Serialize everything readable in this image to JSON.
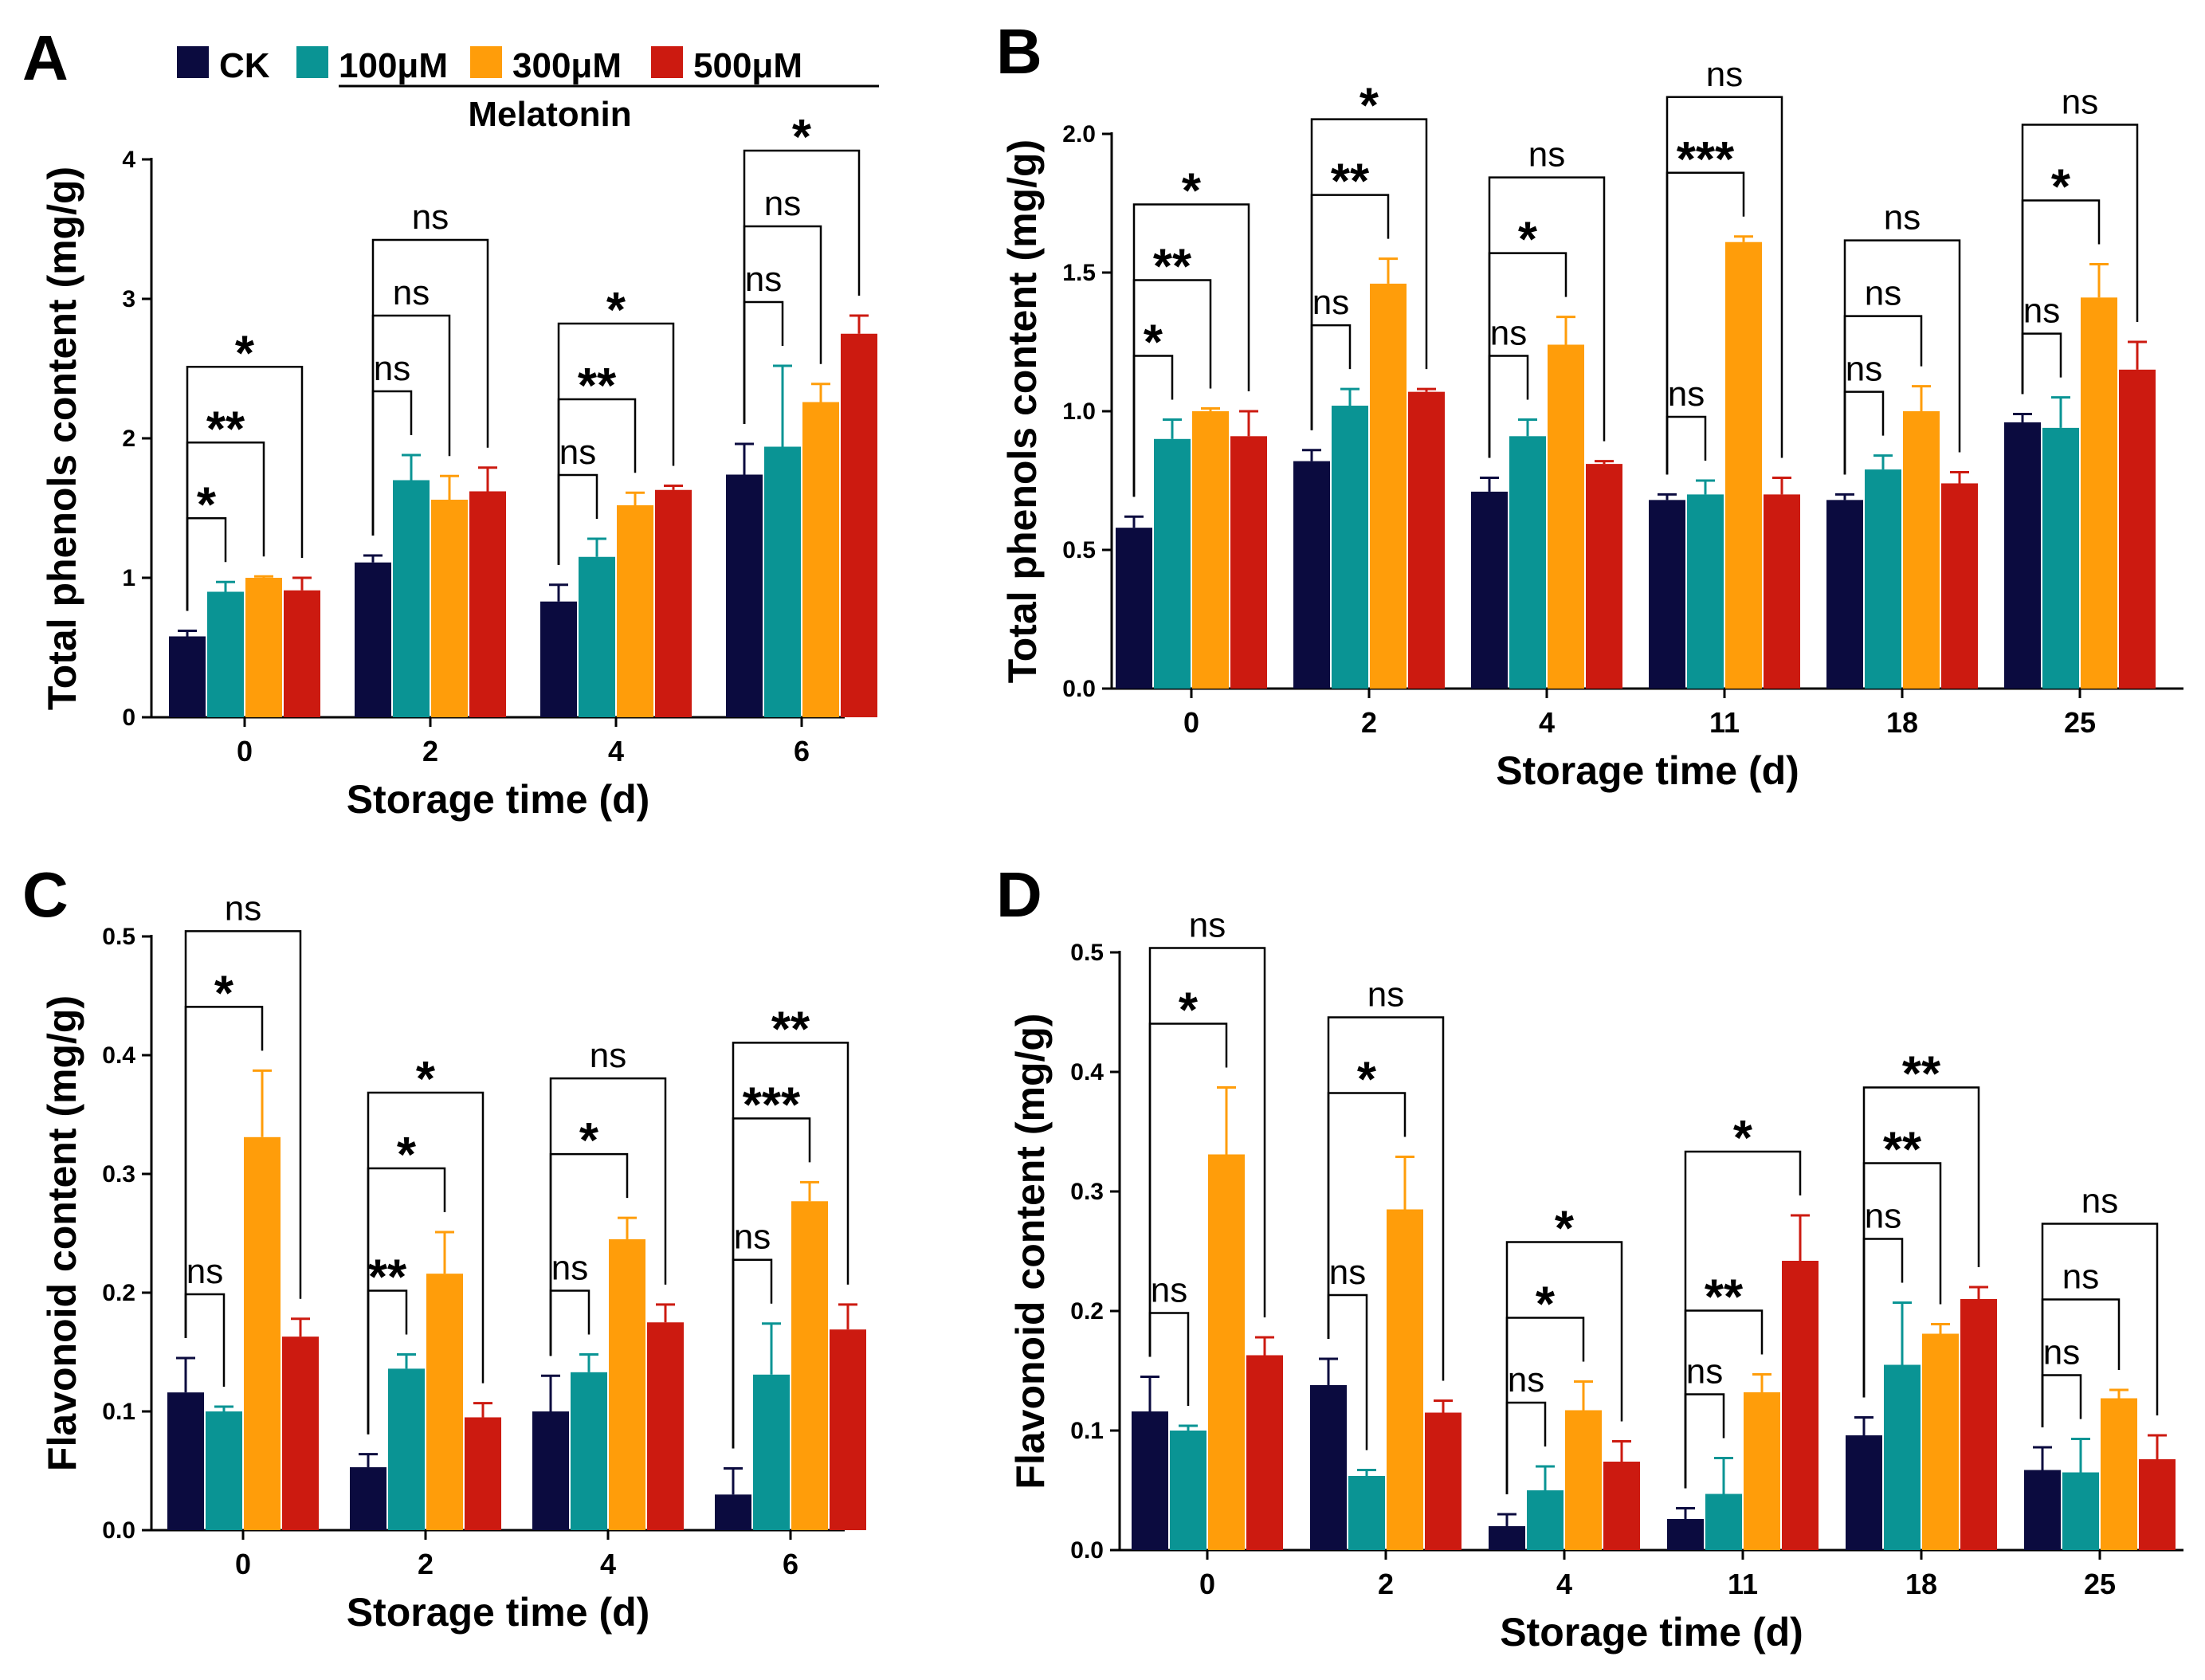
{
  "colors": {
    "CK": "#0b0b3f",
    "100μM": "#0a9494",
    "300μM": "#ff9d0a",
    "500μM": "#cc1a10"
  },
  "legend": {
    "items": [
      "CK",
      "100μM",
      "300μM",
      "500μM"
    ],
    "group_label": "Melatonin"
  },
  "chart_data": [
    {
      "id": "A",
      "type": "bar",
      "panel_letter": "A",
      "xlabel": "Storage time (d)",
      "ylabel": "Total phenols content (mg/g)",
      "ylim": [
        0,
        4
      ],
      "yticks": [
        "0",
        "1",
        "2",
        "3",
        "4"
      ],
      "categories": [
        "0",
        "2",
        "4",
        "6"
      ],
      "series": [
        {
          "name": "CK",
          "values": [
            0.58,
            1.11,
            0.83,
            1.74
          ],
          "errors": [
            0.04,
            0.05,
            0.12,
            0.22
          ]
        },
        {
          "name": "100μM",
          "values": [
            0.9,
            1.7,
            1.15,
            1.94
          ],
          "errors": [
            0.07,
            0.18,
            0.13,
            0.58
          ]
        },
        {
          "name": "300μM",
          "values": [
            1.0,
            1.56,
            1.52,
            2.26
          ],
          "errors": [
            0.01,
            0.17,
            0.09,
            0.13
          ]
        },
        {
          "name": "500μM",
          "values": [
            0.91,
            1.62,
            1.63,
            2.75
          ],
          "errors": [
            0.09,
            0.17,
            0.03,
            0.13
          ]
        }
      ],
      "significance": [
        [
          {
            "to": 1,
            "label": "*"
          },
          {
            "to": 2,
            "label": "**"
          },
          {
            "to": 3,
            "label": "*"
          }
        ],
        [
          {
            "to": 1,
            "label": "ns"
          },
          {
            "to": 2,
            "label": "ns"
          },
          {
            "to": 3,
            "label": "ns"
          }
        ],
        [
          {
            "to": 1,
            "label": "ns"
          },
          {
            "to": 2,
            "label": "**"
          },
          {
            "to": 3,
            "label": "*"
          }
        ],
        [
          {
            "to": 1,
            "label": "ns"
          },
          {
            "to": 2,
            "label": "ns"
          },
          {
            "to": 3,
            "label": "*"
          }
        ]
      ]
    },
    {
      "id": "B",
      "type": "bar",
      "panel_letter": "B",
      "xlabel": "Storage time (d)",
      "ylabel": "Total phenols content (mg/g)",
      "ylim": [
        0,
        2
      ],
      "yticks": [
        "0.0",
        "0.5",
        "1.0",
        "1.5",
        "2.0"
      ],
      "categories": [
        "0",
        "2",
        "4",
        "11",
        "18",
        "25"
      ],
      "series": [
        {
          "name": "CK",
          "values": [
            0.58,
            0.82,
            0.71,
            0.68,
            0.68,
            0.96
          ],
          "errors": [
            0.04,
            0.04,
            0.05,
            0.02,
            0.02,
            0.03
          ]
        },
        {
          "name": "100μM",
          "values": [
            0.9,
            1.02,
            0.91,
            0.7,
            0.79,
            0.94
          ],
          "errors": [
            0.07,
            0.06,
            0.06,
            0.05,
            0.05,
            0.11
          ]
        },
        {
          "name": "300μM",
          "values": [
            1.0,
            1.46,
            1.24,
            1.61,
            1.0,
            1.41
          ],
          "errors": [
            0.01,
            0.09,
            0.1,
            0.02,
            0.09,
            0.12
          ]
        },
        {
          "name": "500μM",
          "values": [
            0.91,
            1.07,
            0.81,
            0.7,
            0.74,
            1.15
          ],
          "errors": [
            0.09,
            0.01,
            0.01,
            0.06,
            0.04,
            0.1
          ]
        }
      ],
      "significance": [
        [
          {
            "to": 1,
            "label": "*"
          },
          {
            "to": 2,
            "label": "**"
          },
          {
            "to": 3,
            "label": "*"
          }
        ],
        [
          {
            "to": 1,
            "label": "ns"
          },
          {
            "to": 2,
            "label": "**"
          },
          {
            "to": 3,
            "label": "*"
          }
        ],
        [
          {
            "to": 1,
            "label": "ns"
          },
          {
            "to": 2,
            "label": "*"
          },
          {
            "to": 3,
            "label": "ns"
          }
        ],
        [
          {
            "to": 1,
            "label": "ns"
          },
          {
            "to": 2,
            "label": "***"
          },
          {
            "to": 3,
            "label": "ns"
          }
        ],
        [
          {
            "to": 1,
            "label": "ns"
          },
          {
            "to": 2,
            "label": "ns"
          },
          {
            "to": 3,
            "label": "ns"
          }
        ],
        [
          {
            "to": 1,
            "label": "ns"
          },
          {
            "to": 2,
            "label": "*"
          },
          {
            "to": 3,
            "label": "ns"
          }
        ]
      ]
    },
    {
      "id": "C",
      "type": "bar",
      "panel_letter": "C",
      "xlabel": "Storage time (d)",
      "ylabel": "Flavonoid content (mg/g)",
      "ylim": [
        0,
        0.5
      ],
      "yticks": [
        "0.0",
        "0.1",
        "0.2",
        "0.3",
        "0.4",
        "0.5"
      ],
      "categories": [
        "0",
        "2",
        "4",
        "6"
      ],
      "series": [
        {
          "name": "CK",
          "values": [
            0.116,
            0.053,
            0.1,
            0.03
          ],
          "errors": [
            0.029,
            0.011,
            0.03,
            0.022
          ]
        },
        {
          "name": "100μM",
          "values": [
            0.1,
            0.136,
            0.133,
            0.131
          ],
          "errors": [
            0.004,
            0.012,
            0.015,
            0.043
          ]
        },
        {
          "name": "300μM",
          "values": [
            0.331,
            0.216,
            0.245,
            0.277
          ],
          "errors": [
            0.056,
            0.035,
            0.018,
            0.016
          ]
        },
        {
          "name": "500μM",
          "values": [
            0.163,
            0.095,
            0.175,
            0.169
          ],
          "errors": [
            0.015,
            0.012,
            0.015,
            0.021
          ]
        }
      ],
      "significance": [
        [
          {
            "to": 1,
            "label": "ns"
          },
          {
            "to": 2,
            "label": "*"
          },
          {
            "to": 3,
            "label": "ns"
          }
        ],
        [
          {
            "to": 1,
            "label": "**"
          },
          {
            "to": 2,
            "label": "*"
          },
          {
            "to": 3,
            "label": "*"
          }
        ],
        [
          {
            "to": 1,
            "label": "ns"
          },
          {
            "to": 2,
            "label": "*"
          },
          {
            "to": 3,
            "label": "ns"
          }
        ],
        [
          {
            "to": 1,
            "label": "ns"
          },
          {
            "to": 2,
            "label": "***"
          },
          {
            "to": 3,
            "label": "**"
          }
        ]
      ]
    },
    {
      "id": "D",
      "type": "bar",
      "panel_letter": "D",
      "xlabel": "Storage time (d)",
      "ylabel": "Flavonoid content (mg/g)",
      "ylim": [
        0,
        0.5
      ],
      "yticks": [
        "0.0",
        "0.1",
        "0.2",
        "0.3",
        "0.4",
        "0.5"
      ],
      "categories": [
        "0",
        "2",
        "4",
        "11",
        "18",
        "25"
      ],
      "series": [
        {
          "name": "CK",
          "values": [
            0.116,
            0.138,
            0.02,
            0.026,
            0.096,
            0.067
          ],
          "errors": [
            0.029,
            0.022,
            0.01,
            0.009,
            0.015,
            0.019
          ]
        },
        {
          "name": "100μM",
          "values": [
            0.1,
            0.062,
            0.05,
            0.047,
            0.155,
            0.065
          ],
          "errors": [
            0.004,
            0.005,
            0.02,
            0.03,
            0.052,
            0.028
          ]
        },
        {
          "name": "300μM",
          "values": [
            0.331,
            0.285,
            0.117,
            0.132,
            0.181,
            0.127
          ],
          "errors": [
            0.056,
            0.044,
            0.024,
            0.015,
            0.008,
            0.007
          ]
        },
        {
          "name": "500μM",
          "values": [
            0.163,
            0.115,
            0.074,
            0.242,
            0.21,
            0.076
          ],
          "errors": [
            0.015,
            0.01,
            0.017,
            0.038,
            0.01,
            0.02
          ]
        }
      ],
      "significance": [
        [
          {
            "to": 1,
            "label": "ns"
          },
          {
            "to": 2,
            "label": "*"
          },
          {
            "to": 3,
            "label": "ns"
          }
        ],
        [
          {
            "to": 1,
            "label": "ns"
          },
          {
            "to": 2,
            "label": "*"
          },
          {
            "to": 3,
            "label": "ns"
          }
        ],
        [
          {
            "to": 1,
            "label": "ns"
          },
          {
            "to": 2,
            "label": "*"
          },
          {
            "to": 3,
            "label": "*"
          }
        ],
        [
          {
            "to": 1,
            "label": "ns"
          },
          {
            "to": 2,
            "label": "**"
          },
          {
            "to": 3,
            "label": "*"
          }
        ],
        [
          {
            "to": 1,
            "label": "ns"
          },
          {
            "to": 2,
            "label": "**"
          },
          {
            "to": 3,
            "label": "**"
          }
        ],
        [
          {
            "to": 1,
            "label": "ns"
          },
          {
            "to": 2,
            "label": "ns"
          },
          {
            "to": 3,
            "label": "ns"
          }
        ]
      ]
    }
  ]
}
